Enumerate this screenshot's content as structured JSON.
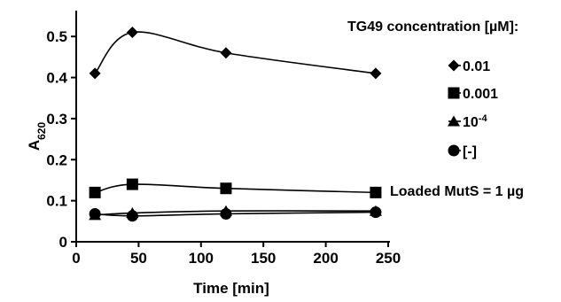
{
  "chart_data": {
    "type": "line",
    "xlabel": "Time [min]",
    "ylabel": "A",
    "ylabel_sub": "620",
    "xlim": [
      0,
      250
    ],
    "ylim": [
      0,
      0.55
    ],
    "x_ticks": [
      "0",
      "50",
      "100",
      "150",
      "200",
      "250"
    ],
    "y_ticks": [
      "0",
      "0.1",
      "0.2",
      "0.3",
      "0.4",
      "0.5"
    ],
    "grid": false,
    "legend_title": "TG49 concentration [µM]:",
    "legend_position": "right",
    "annotation": "Loaded MutS = 1 µg",
    "x": [
      15,
      45,
      120,
      240
    ],
    "series": [
      {
        "name": "0.01",
        "name_base": "",
        "name_sup": "",
        "marker": "diamond",
        "values": [
          0.41,
          0.51,
          0.46,
          0.41
        ]
      },
      {
        "name": "0.001",
        "name_base": "",
        "name_sup": "",
        "marker": "square",
        "values": [
          0.12,
          0.14,
          0.13,
          0.12
        ]
      },
      {
        "name": "10-4",
        "name_base": "10",
        "name_sup": "-4",
        "marker": "triangle",
        "values": [
          0.065,
          0.07,
          0.075,
          0.075
        ]
      },
      {
        "name": "[-]",
        "name_base": "",
        "name_sup": "",
        "marker": "circle",
        "values": [
          0.068,
          0.063,
          0.068,
          0.072
        ]
      }
    ]
  }
}
